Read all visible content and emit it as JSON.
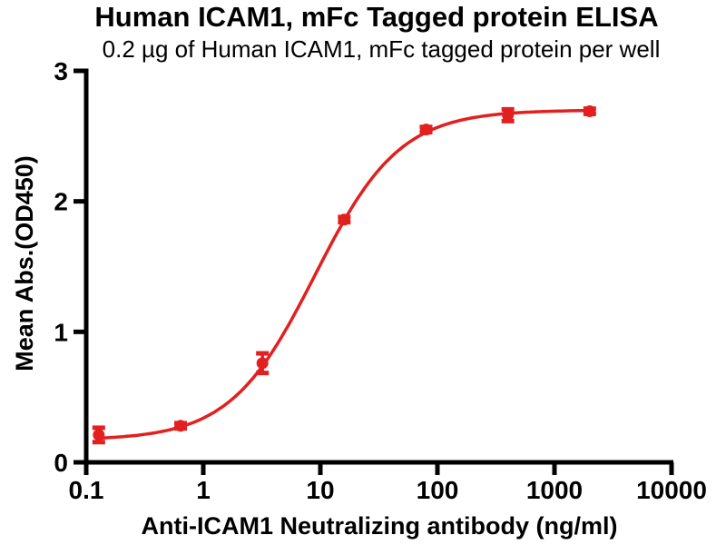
{
  "chart_data": {
    "type": "scatter",
    "title": "Human ICAM1, mFc Tagged protein ELISA",
    "subtitle": "0.2 µg of Human ICAM1, mFc tagged protein per well",
    "xlabel": "Anti-ICAM1 Neutralizing antibody (ng/ml)",
    "ylabel": "Mean Abs.(OD450)",
    "x_scale": "log10",
    "xlim": [
      0.1,
      10000
    ],
    "ylim": [
      0,
      3
    ],
    "x_ticks": [
      0.1,
      1,
      10,
      100,
      1000,
      10000
    ],
    "x_tick_labels": [
      "0.1",
      "1",
      "10",
      "100",
      "1000",
      "10000"
    ],
    "y_ticks": [
      0,
      1,
      2,
      3
    ],
    "y_tick_labels": [
      "0",
      "1",
      "2",
      "3"
    ],
    "grid": false,
    "legend": "none",
    "series": [
      {
        "color": "#e1201f",
        "marker": "circle",
        "x": [
          0.128,
          0.64,
          3.2,
          16,
          80,
          400,
          2000
        ],
        "y": [
          0.21,
          0.28,
          0.76,
          1.86,
          2.55,
          2.66,
          2.69
        ],
        "y_err": [
          0.055,
          0.02,
          0.075,
          0.02,
          0.02,
          0.045,
          0.02
        ]
      }
    ],
    "fit_curve": {
      "model": "4PL",
      "bottom": 0.17,
      "top": 2.7,
      "ec50_ng_ml": 9.0,
      "hill": 1.2
    }
  }
}
